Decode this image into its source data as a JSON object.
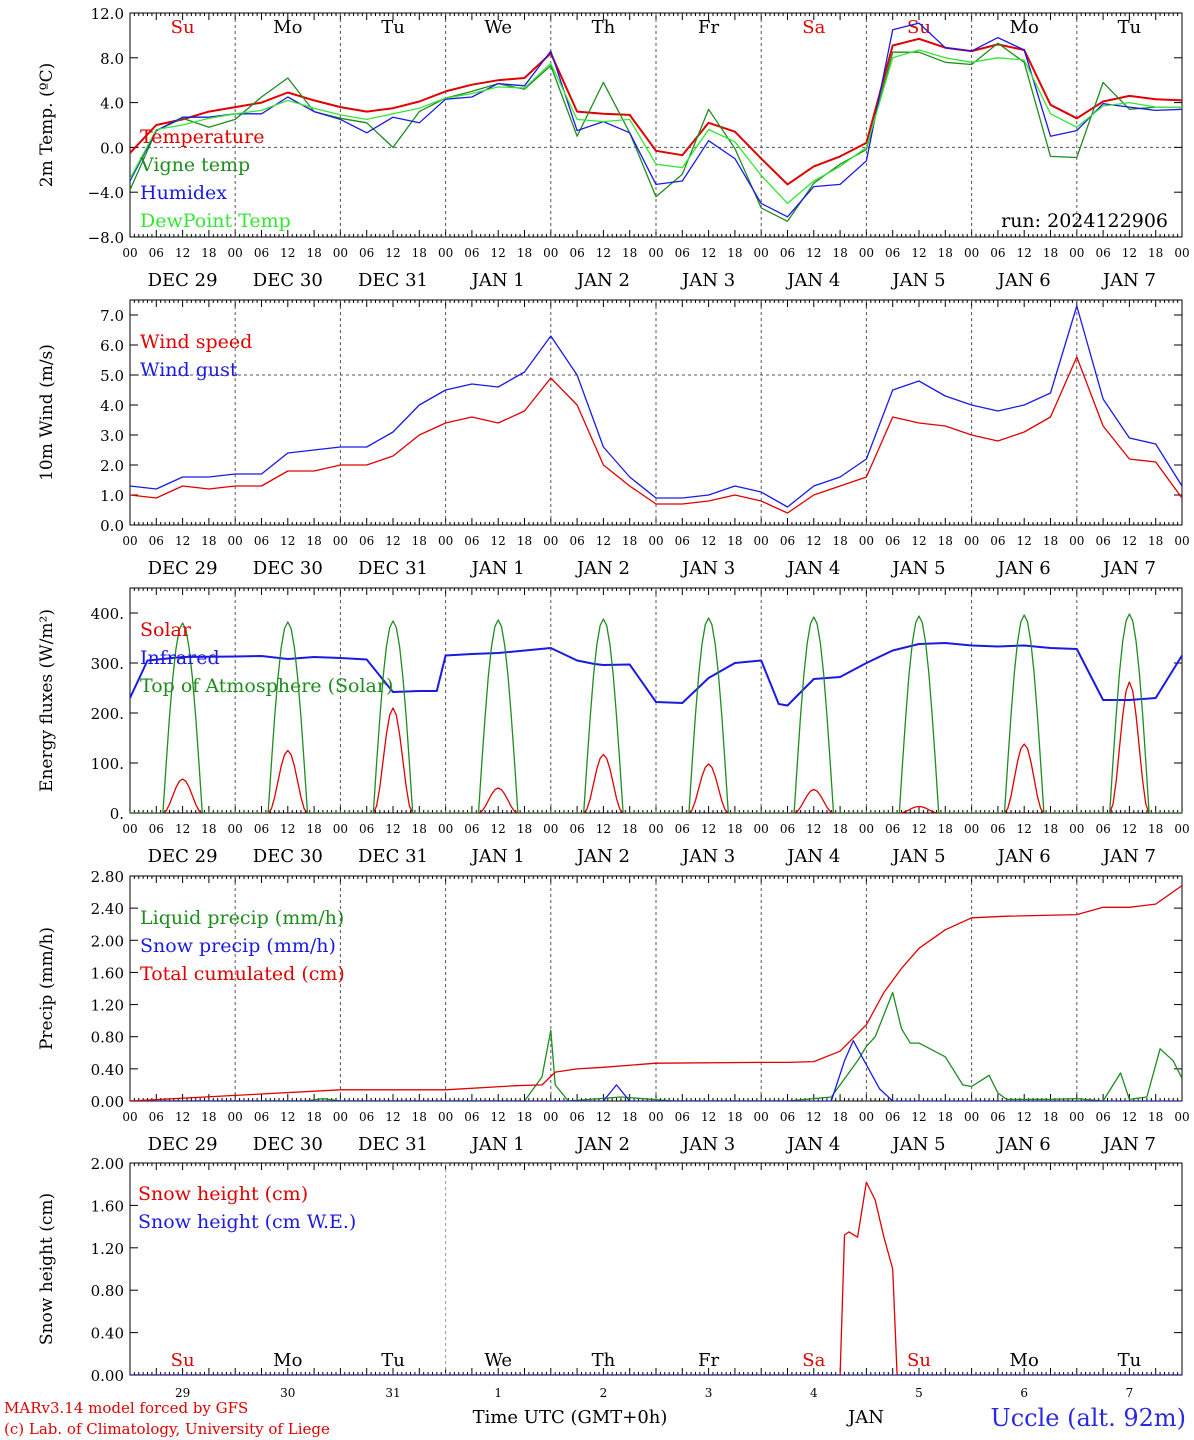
{
  "colors": {
    "red": "#e00000",
    "green": "#1e8c1e",
    "blue": "#1a1ae6",
    "lightgreen": "#33e633",
    "grid": "#555555"
  },
  "day_names": [
    "Su",
    "Mo",
    "Tu",
    "We",
    "Th",
    "Fr",
    "Sa",
    "Su",
    "Mo",
    "Tu"
  ],
  "weekend_days": [
    0,
    6,
    7
  ],
  "date_labels": [
    "DEC 29",
    "DEC 30",
    "DEC 31",
    "JAN  1",
    "JAN  2",
    "JAN  3",
    "JAN  4",
    "JAN  5",
    "JAN  6",
    "JAN  7"
  ],
  "hour_labels": [
    "00",
    "06",
    "12",
    "18"
  ],
  "bottom_day_numbers": [
    "29",
    "30",
    "31",
    "1",
    "2",
    "3",
    "4",
    "5",
    "6",
    "7"
  ],
  "run_label": "run: 2024122906",
  "footer": {
    "model": "MARv3.14 model forced by GFS",
    "copyright": "(c) Lab. of Climatology, University of Liege",
    "time_axis": "Time UTC (GMT+0h)",
    "month": "JAN",
    "station": "Uccle (alt. 92m)"
  },
  "chart_data": [
    {
      "type": "line",
      "ylabel": "2m Temp. (ºC)",
      "ylim": [
        -8,
        12
      ],
      "yticks": [
        "12.0",
        "8.0",
        "4.0",
        "0.0",
        "−4.0",
        "−8.0"
      ],
      "ytick_values": [
        12,
        8,
        4,
        0,
        -4,
        -8
      ],
      "hline": 0,
      "x_unit": "hours since DEC 29 00 UTC",
      "x": [
        0,
        6,
        12,
        18,
        24,
        30,
        36,
        42,
        48,
        54,
        60,
        66,
        72,
        78,
        84,
        90,
        96,
        102,
        108,
        114,
        120,
        126,
        132,
        138,
        144,
        150,
        156,
        162,
        168,
        174,
        180,
        186,
        192,
        198,
        204,
        210,
        216,
        222,
        228,
        234,
        240
      ],
      "series": [
        {
          "name": "Temperature",
          "color": "red",
          "values": [
            -0.5,
            2.0,
            2.5,
            3.2,
            3.6,
            4.0,
            4.9,
            4.2,
            3.6,
            3.2,
            3.5,
            4.1,
            5.0,
            5.6,
            6.0,
            6.2,
            8.4,
            3.2,
            3.0,
            2.9,
            -0.3,
            -0.7,
            2.2,
            1.4,
            -1.0,
            -3.3,
            -1.7,
            -0.8,
            0.4,
            9.1,
            9.7,
            8.9,
            8.6,
            9.2,
            8.7,
            3.8,
            2.6,
            4.1,
            4.6,
            4.3,
            4.2
          ]
        },
        {
          "name": "Vigne temp",
          "color": "green",
          "values": [
            -3.8,
            1.5,
            2.6,
            1.8,
            2.5,
            4.5,
            6.2,
            3.2,
            2.6,
            2.2,
            0.0,
            3.2,
            4.4,
            5.0,
            5.7,
            5.2,
            7.3,
            1.0,
            5.8,
            1.3,
            -4.4,
            -2.4,
            3.4,
            -0.1,
            -5.4,
            -6.6,
            -3.2,
            -1.5,
            -0.2,
            8.5,
            8.5,
            7.6,
            7.4,
            9.3,
            7.6,
            -0.8,
            -0.9,
            5.8,
            3.4,
            3.6,
            3.6
          ]
        },
        {
          "name": "Humidex",
          "color": "blue",
          "values": [
            -3.0,
            1.5,
            2.7,
            2.7,
            3.0,
            3.0,
            4.5,
            3.2,
            2.5,
            1.3,
            2.7,
            2.2,
            4.3,
            4.5,
            5.7,
            5.5,
            8.6,
            1.5,
            2.3,
            1.3,
            -3.3,
            -3.0,
            0.6,
            -1.0,
            -5.0,
            -6.2,
            -3.5,
            -3.3,
            -1.2,
            10.5,
            11.1,
            8.9,
            8.6,
            9.8,
            8.7,
            1.0,
            1.5,
            3.9,
            3.6,
            3.3,
            3.4
          ]
        },
        {
          "name": "DewPoint Temp",
          "color": "lightgreen",
          "values": [
            -2.8,
            1.6,
            2.0,
            2.6,
            3.0,
            3.3,
            4.2,
            3.5,
            2.9,
            2.5,
            3.0,
            3.5,
            4.4,
            4.8,
            5.4,
            5.3,
            7.5,
            2.5,
            2.3,
            2.5,
            -1.5,
            -1.8,
            1.6,
            0.5,
            -2.5,
            -5.0,
            -3.0,
            -1.7,
            0.0,
            8.0,
            8.7,
            8.0,
            7.6,
            8.0,
            7.8,
            3.0,
            1.8,
            3.7,
            4.0,
            3.6,
            3.6
          ]
        }
      ]
    },
    {
      "type": "line",
      "ylabel": "10m Wind (m/s)",
      "ylim": [
        0,
        7.5
      ],
      "yticks": [
        "7.0",
        "6.0",
        "5.0",
        "4.0",
        "3.0",
        "2.0",
        "1.0",
        "0.0"
      ],
      "ytick_values": [
        7,
        6,
        5,
        4,
        3,
        2,
        1,
        0
      ],
      "hline": 5,
      "x": [
        0,
        6,
        12,
        18,
        24,
        30,
        36,
        42,
        48,
        54,
        60,
        66,
        72,
        78,
        84,
        90,
        96,
        102,
        108,
        114,
        120,
        126,
        132,
        138,
        144,
        150,
        156,
        162,
        168,
        174,
        180,
        186,
        192,
        198,
        204,
        210,
        216,
        222,
        228,
        234,
        240
      ],
      "series": [
        {
          "name": "Wind speed",
          "color": "red",
          "values": [
            1.0,
            0.9,
            1.3,
            1.2,
            1.3,
            1.3,
            1.8,
            1.8,
            2.0,
            2.0,
            2.3,
            3.0,
            3.4,
            3.6,
            3.4,
            3.8,
            4.9,
            4.0,
            2.0,
            1.3,
            0.7,
            0.7,
            0.8,
            1.0,
            0.8,
            0.4,
            1.0,
            1.3,
            1.6,
            3.6,
            3.4,
            3.3,
            3.0,
            2.8,
            3.1,
            3.6,
            5.6,
            3.3,
            2.2,
            2.1,
            0.9
          ]
        },
        {
          "name": "Wind gust",
          "color": "blue",
          "values": [
            1.3,
            1.2,
            1.6,
            1.6,
            1.7,
            1.7,
            2.4,
            2.5,
            2.6,
            2.6,
            3.1,
            4.0,
            4.5,
            4.7,
            4.6,
            5.1,
            6.3,
            5.0,
            2.6,
            1.6,
            0.9,
            0.9,
            1.0,
            1.3,
            1.1,
            0.6,
            1.3,
            1.6,
            2.2,
            4.5,
            4.8,
            4.3,
            4.0,
            3.8,
            4.0,
            4.4,
            7.3,
            4.2,
            2.9,
            2.7,
            1.3
          ]
        }
      ]
    },
    {
      "type": "line",
      "ylabel": "Energy fluxes (W/m²)",
      "ylim": [
        0,
        450
      ],
      "yticks": [
        "400.",
        "300.",
        "200.",
        "100.",
        "0."
      ],
      "ytick_values": [
        400,
        300,
        200,
        100,
        0
      ],
      "days": 10,
      "sunrise_h": 7.5,
      "sunset_h": 16.5,
      "series": [
        {
          "name": "Solar",
          "color": "red",
          "daily_peaks": [
            68,
            125,
            210,
            50,
            117,
            98,
            47,
            13,
            138,
            262
          ]
        },
        {
          "name": "Infrared",
          "color": "blue",
          "x": [
            0,
            4,
            12,
            24,
            30,
            36,
            42,
            48,
            54,
            60,
            66,
            70,
            72,
            78,
            84,
            96,
            102,
            106,
            108,
            114,
            120,
            126,
            132,
            138,
            144,
            148,
            150,
            156,
            162,
            168,
            174,
            180,
            186,
            192,
            198,
            204,
            210,
            216,
            222,
            228,
            234,
            240
          ],
          "values": [
            230,
            305,
            312,
            313,
            314,
            308,
            312,
            310,
            307,
            242,
            244,
            244,
            315,
            318,
            320,
            330,
            305,
            298,
            296,
            297,
            222,
            220,
            270,
            300,
            305,
            218,
            215,
            268,
            272,
            300,
            325,
            338,
            340,
            335,
            333,
            335,
            330,
            328,
            226,
            226,
            230,
            315
          ]
        },
        {
          "name": "Top of Atmosphere (Solar)",
          "color": "green",
          "daily_peaks": [
            380,
            382,
            384,
            386,
            388,
            390,
            392,
            394,
            396,
            398
          ]
        }
      ]
    },
    {
      "type": "line",
      "ylabel": "Precip (mm/h)",
      "ylim": [
        0,
        2.8
      ],
      "yticks": [
        "2.80",
        "2.40",
        "2.00",
        "1.60",
        "1.20",
        "0.80",
        "0.40",
        "0.00"
      ],
      "ytick_values": [
        2.8,
        2.4,
        2.0,
        1.6,
        1.2,
        0.8,
        0.4,
        0
      ],
      "series": [
        {
          "name": "Liquid precip (mm/h)",
          "color": "green",
          "x": [
            0,
            40,
            44,
            48,
            90,
            94,
            96,
            97,
            100,
            112,
            124,
            150,
            160,
            166,
            168,
            170,
            174,
            176,
            178,
            180,
            186,
            190,
            192,
            196,
            198,
            200,
            210,
            216,
            222,
            226,
            228,
            232,
            235,
            238,
            240
          ],
          "values": [
            0,
            0,
            0.03,
            0,
            0,
            0.3,
            0.88,
            0.2,
            0,
            0.05,
            0,
            0,
            0.05,
            0.5,
            0.68,
            0.8,
            1.35,
            0.9,
            0.72,
            0.72,
            0.55,
            0.2,
            0.18,
            0.32,
            0.1,
            0.02,
            0.02,
            0.03,
            0.0,
            0.35,
            0.02,
            0.05,
            0.65,
            0.5,
            0.28
          ]
        },
        {
          "name": "Snow precip (mm/h)",
          "color": "blue",
          "x": [
            0,
            108,
            111,
            114,
            160,
            163,
            165,
            167,
            171,
            174,
            240
          ],
          "values": [
            0,
            0,
            0.2,
            0,
            0,
            0.5,
            0.75,
            0.55,
            0.15,
            0,
            0
          ]
        },
        {
          "name": "Total cumulated (cm)",
          "color": "red",
          "x": [
            0,
            24,
            48,
            72,
            88,
            94,
            97,
            102,
            108,
            120,
            144,
            150,
            156,
            162,
            168,
            172,
            176,
            180,
            186,
            192,
            200,
            216,
            222,
            228,
            234,
            240
          ],
          "values": [
            0.0,
            0.07,
            0.14,
            0.14,
            0.19,
            0.2,
            0.36,
            0.4,
            0.42,
            0.47,
            0.48,
            0.48,
            0.49,
            0.62,
            0.95,
            1.35,
            1.65,
            1.9,
            2.13,
            2.28,
            2.3,
            2.32,
            2.41,
            2.41,
            2.45,
            2.68
          ]
        }
      ]
    },
    {
      "type": "line",
      "ylabel": "Snow height (cm)",
      "ylim": [
        0,
        2
      ],
      "yticks": [
        "2.00",
        "1.60",
        "1.20",
        "0.80",
        "0.40",
        "0.00"
      ],
      "ytick_values": [
        2.0,
        1.6,
        1.2,
        0.8,
        0.4,
        0
      ],
      "series": [
        {
          "name": "Snow height (cm)",
          "color": "red",
          "x": [
            0,
            162,
            163,
            164,
            166,
            168,
            170,
            172,
            174,
            175,
            240
          ],
          "values": [
            0,
            0,
            1.32,
            1.35,
            1.3,
            1.82,
            1.65,
            1.3,
            1.0,
            0,
            0
          ]
        },
        {
          "name": "Snow height (cm W.E.)",
          "color": "blue",
          "x": [
            0,
            240
          ],
          "values": [
            0,
            0
          ]
        }
      ]
    }
  ]
}
